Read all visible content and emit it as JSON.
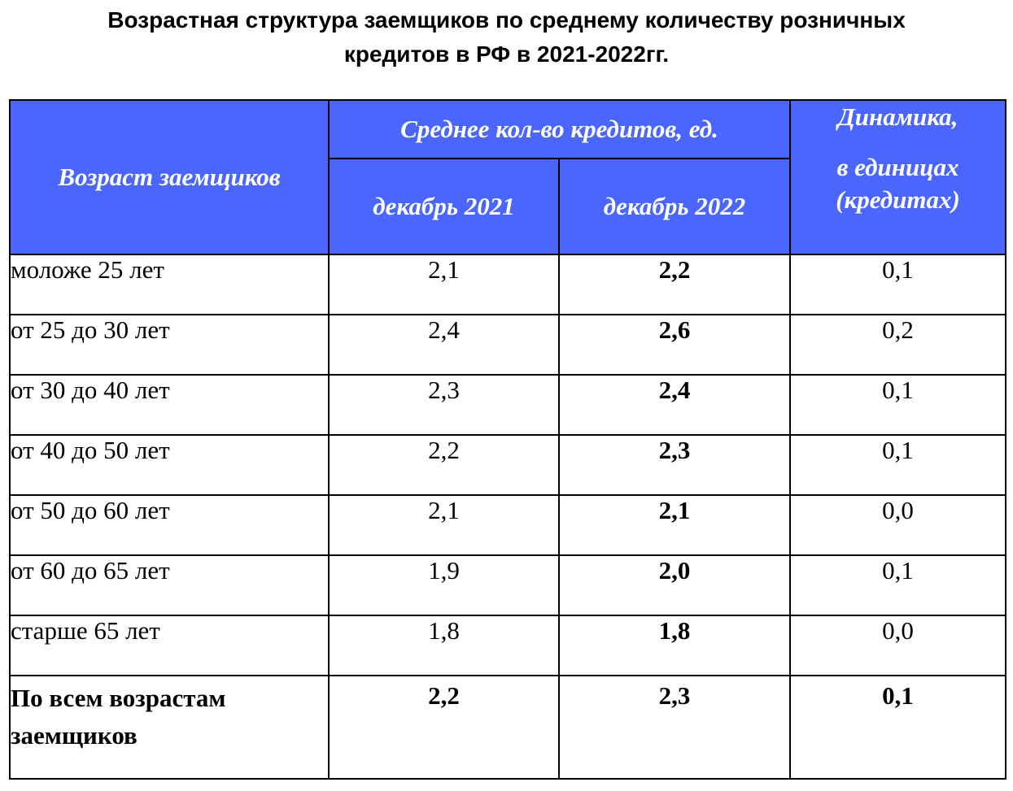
{
  "title": {
    "line1": "Возрастная структура заемщиков по среднему количеству розничных",
    "line2": "кредитов в РФ в 2021-2022гг."
  },
  "table": {
    "header": {
      "age": "Возраст заемщиков",
      "avg_group": "Среднее кол-во кредитов, ед.",
      "dec2021": "декабрь 2021",
      "dec2022": "декабрь 2022",
      "dynamics_line1": "Динамика,",
      "dynamics_line2": "в единицах",
      "dynamics_line3": "(кредитах)"
    },
    "rows": [
      {
        "age": "моложе 25 лет",
        "dec2021": "2,1",
        "dec2022": "2,2",
        "dynamics": "0,1"
      },
      {
        "age": "от 25 до 30 лет",
        "dec2021": "2,4",
        "dec2022": "2,6",
        "dynamics": "0,2"
      },
      {
        "age": "от 30 до 40 лет",
        "dec2021": "2,3",
        "dec2022": "2,4",
        "dynamics": "0,1"
      },
      {
        "age": "от 40 до 50 лет",
        "dec2021": "2,2",
        "dec2022": "2,3",
        "dynamics": "0,1"
      },
      {
        "age": "от 50 до 60 лет",
        "dec2021": "2,1",
        "dec2022": "2,1",
        "dynamics": "0,0"
      },
      {
        "age": "от 60 до 65 лет",
        "dec2021": "1,9",
        "dec2022": "2,0",
        "dynamics": "0,1"
      },
      {
        "age": "старше 65 лет",
        "dec2021": "1,8",
        "dec2022": "1,8",
        "dynamics": "0,0"
      }
    ],
    "total": {
      "age_line1": "По всем возрастам",
      "age_line2": "заемщиков",
      "dec2021": "2,2",
      "dec2022": "2,3",
      "dynamics": "0,1"
    }
  },
  "colors": {
    "header_bg": "#4a66ff",
    "header_text": "#ffffff"
  }
}
